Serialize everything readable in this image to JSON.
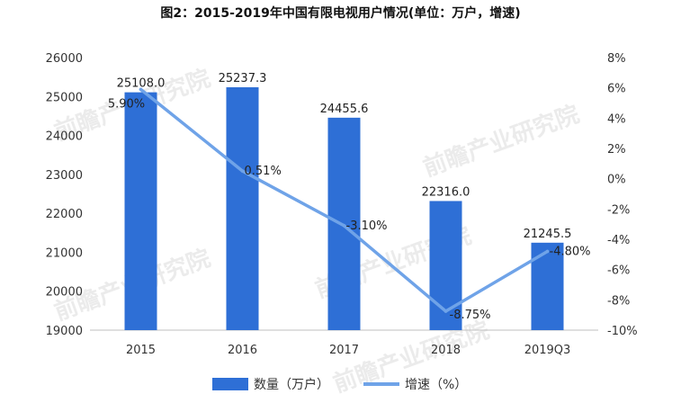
{
  "chart_data": {
    "type": "bar+line",
    "title": "图2：2015-2019年中国有限电视用户情况(单位：万户，增速)",
    "categories": [
      "2015",
      "2016",
      "2017",
      "2018",
      "2019Q3"
    ],
    "series": [
      {
        "name": "数量（万户）",
        "type": "bar",
        "axis": "left",
        "values": [
          25108.0,
          25237.3,
          24455.6,
          22316.0,
          21245.5
        ],
        "labels": [
          "25108.0",
          "25237.3",
          "24455.6",
          "22316.0",
          "21245.5"
        ],
        "color": "#2e6fd6"
      },
      {
        "name": "增速（%）",
        "type": "line",
        "axis": "right",
        "values": [
          5.9,
          0.51,
          -3.1,
          -8.75,
          -4.8
        ],
        "labels": [
          "5.90%",
          "0.51%",
          "-3.10%",
          "-8.75%",
          "-4.80%"
        ],
        "color": "#6fa3e8"
      }
    ],
    "y_left": {
      "min": 19000,
      "max": 26000,
      "ticks": [
        "19000",
        "20000",
        "21000",
        "22000",
        "23000",
        "24000",
        "25000",
        "26000"
      ]
    },
    "y_right": {
      "min": -10,
      "max": 8,
      "ticks": [
        "-10%",
        "-8%",
        "-6%",
        "-4%",
        "-2%",
        "0%",
        "2%",
        "4%",
        "6%",
        "8%"
      ]
    },
    "legend": {
      "placement": "bottom"
    },
    "grid": false
  },
  "watermark": "前瞻产业研究院"
}
